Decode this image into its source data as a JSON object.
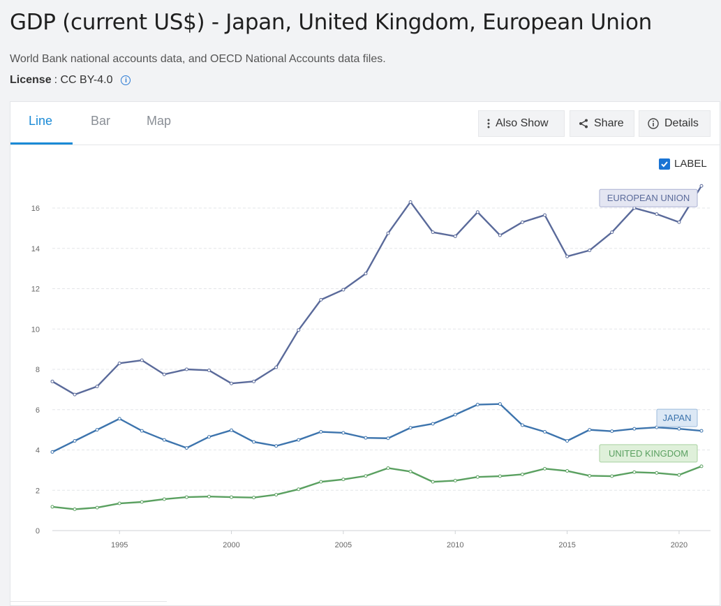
{
  "header": {
    "title": "GDP (current US$) - Japan, United Kingdom, European Union",
    "source": "World Bank national accounts data, and OECD National Accounts data files.",
    "license_key": "License",
    "license_value": ": CC BY-4.0",
    "info_icon": "info-icon"
  },
  "tabs": [
    {
      "label": "Line",
      "active": true
    },
    {
      "label": "Bar",
      "active": false
    },
    {
      "label": "Map",
      "active": false
    }
  ],
  "toolbar": {
    "also_show": "Also Show",
    "share": "Share",
    "details": "Details"
  },
  "label_toggle": {
    "label": "LABEL",
    "checked": true
  },
  "chart_data": {
    "type": "line",
    "ylim": [
      0,
      17
    ],
    "yticks": [
      0,
      2,
      4,
      6,
      8,
      10,
      12,
      14,
      16
    ],
    "xlim": [
      1992,
      2021
    ],
    "xticks": [
      1995,
      2000,
      2005,
      2010,
      2015,
      2020
    ],
    "grid": true,
    "x": [
      1992,
      1993,
      1994,
      1995,
      1996,
      1997,
      1998,
      1999,
      2000,
      2001,
      2002,
      2003,
      2004,
      2005,
      2006,
      2007,
      2008,
      2009,
      2010,
      2011,
      2012,
      2013,
      2014,
      2015,
      2016,
      2017,
      2018,
      2019,
      2020,
      2021
    ],
    "series": [
      {
        "name": "EUROPEAN UNION",
        "color": "#5a6a9a",
        "label_bg": "#e4e6f2",
        "label_border": "#aab0d2",
        "values": [
          7.4,
          6.75,
          7.15,
          8.3,
          8.45,
          7.75,
          8.0,
          7.95,
          7.3,
          7.4,
          8.1,
          9.95,
          11.45,
          11.95,
          12.75,
          14.75,
          16.3,
          14.8,
          14.6,
          15.8,
          14.65,
          15.3,
          15.65,
          13.6,
          13.9,
          14.8,
          16.0,
          15.7,
          15.3,
          17.1
        ]
      },
      {
        "name": "JAPAN",
        "color": "#3d74ad",
        "label_bg": "#dce8f5",
        "label_border": "#9dbbdc",
        "values": [
          3.9,
          4.45,
          5.0,
          5.55,
          4.95,
          4.5,
          4.1,
          4.65,
          4.98,
          4.4,
          4.2,
          4.5,
          4.9,
          4.85,
          4.6,
          4.58,
          5.1,
          5.3,
          5.75,
          6.25,
          6.28,
          5.23,
          4.9,
          4.45,
          5.0,
          4.93,
          5.05,
          5.12,
          5.05,
          4.95
        ]
      },
      {
        "name": "UNITED KINGDOM",
        "color": "#5aa060",
        "label_bg": "#dff0da",
        "label_border": "#a8d1a0",
        "values": [
          1.18,
          1.06,
          1.14,
          1.35,
          1.42,
          1.56,
          1.66,
          1.69,
          1.66,
          1.64,
          1.78,
          2.05,
          2.42,
          2.54,
          2.71,
          3.1,
          2.93,
          2.42,
          2.48,
          2.66,
          2.7,
          2.79,
          3.07,
          2.96,
          2.72,
          2.7,
          2.9,
          2.86,
          2.76,
          3.19
        ]
      }
    ]
  }
}
